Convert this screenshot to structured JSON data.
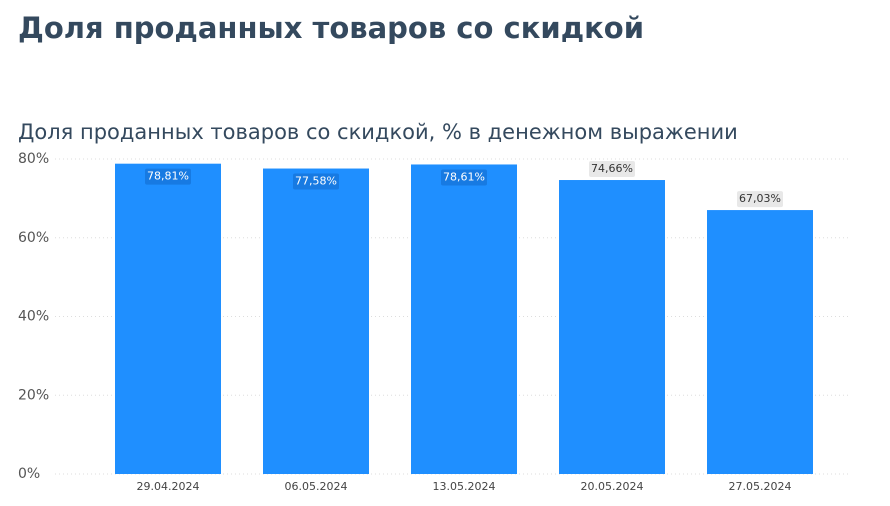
{
  "header": {
    "title": "Доля проданных товаров со скидкой"
  },
  "chart_data": {
    "type": "bar",
    "title": "Доля проданных товаров со скидкой, % в денежном выражении",
    "categories": [
      "29.04.2024",
      "06.05.2024",
      "13.05.2024",
      "20.05.2024",
      "27.05.2024"
    ],
    "values": [
      78.81,
      77.58,
      78.61,
      74.66,
      67.03
    ],
    "value_labels": [
      "78,81%",
      "77,58%",
      "78,61%",
      "74,66%",
      "67,03%"
    ],
    "color": "#1f8fff",
    "ylim": [
      0,
      80
    ],
    "yticks": [
      {
        "value": 0,
        "label": "0%"
      },
      {
        "value": 20,
        "label": "20%"
      },
      {
        "value": 40,
        "label": "40%"
      },
      {
        "value": 60,
        "label": "60%"
      },
      {
        "value": 80,
        "label": "80%"
      }
    ],
    "grid": true
  }
}
